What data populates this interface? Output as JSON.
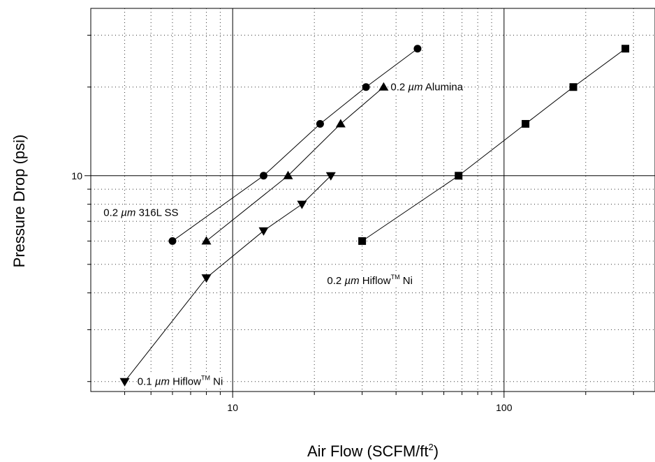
{
  "chart_data": {
    "type": "scatter",
    "title": "",
    "xlabel": "Air Flow (SCFM/ft",
    "xlabel_sup": "2",
    "xlabel_tail": ")",
    "ylabel": "Pressure Drop (psi)",
    "x_scale": "log",
    "y_scale": "log",
    "xlim": [
      3.0,
      360
    ],
    "ylim": [
      1.85,
      37
    ],
    "grid": "major solid, minor dotted",
    "x_tick_labels": [
      {
        "value": 10,
        "label": "10"
      },
      {
        "value": 100,
        "label": "100"
      }
    ],
    "y_tick_labels": [
      {
        "value": 10,
        "label": "10"
      }
    ],
    "series": [
      {
        "name": "0.2 µm Alumina",
        "label_prefix": "0.2 ",
        "label_unit": "µm",
        "label_rest": " Alumina",
        "label_sup": "",
        "label_tail": "",
        "label_anchor": [
          36,
          20
        ],
        "marker": "triangle-up",
        "points": [
          [
            8,
            6
          ],
          [
            16,
            10
          ],
          [
            25,
            15
          ],
          [
            36,
            20
          ]
        ]
      },
      {
        "name": "0.2 µm 316L SS",
        "label_prefix": "0.2 ",
        "label_unit": "µm",
        "label_rest": " 316L SS",
        "label_sup": "",
        "label_tail": "",
        "label_anchor": [
          3.15,
          7.5
        ],
        "marker": "circle",
        "points": [
          [
            6,
            6
          ],
          [
            13,
            10
          ],
          [
            21,
            15
          ],
          [
            31,
            20
          ],
          [
            48,
            27
          ]
        ]
      },
      {
        "name": "0.2 µm Hiflow™ Ni",
        "label_prefix": "0.2 ",
        "label_unit": "µm",
        "label_rest": " Hiflow",
        "label_sup": "TM",
        "label_tail": " Ni",
        "label_anchor": [
          21,
          4.4
        ],
        "marker": "square",
        "points": [
          [
            30,
            6
          ],
          [
            68,
            10
          ],
          [
            120,
            15
          ],
          [
            180,
            20
          ],
          [
            280,
            27
          ]
        ]
      },
      {
        "name": "0.1 µm Hiflow™ Ni",
        "label_prefix": "0.1 ",
        "label_unit": "µm",
        "label_rest": " Hiflow",
        "label_sup": "TM",
        "label_tail": " Ni",
        "label_anchor": [
          4.2,
          2.0
        ],
        "marker": "triangle-down",
        "points": [
          [
            4,
            2
          ],
          [
            8,
            4.5
          ],
          [
            13,
            6.5
          ],
          [
            18,
            8
          ],
          [
            23,
            10
          ]
        ]
      }
    ]
  }
}
